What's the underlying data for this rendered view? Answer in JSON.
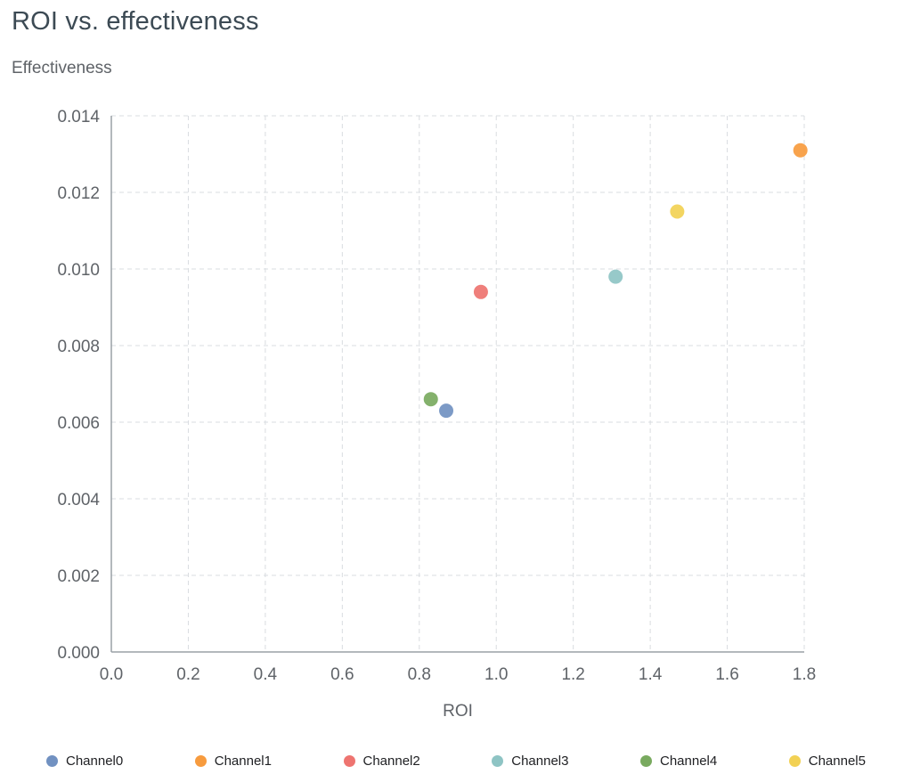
{
  "chart_data": {
    "type": "scatter",
    "title": "ROI vs. effectiveness",
    "xlabel": "ROI",
    "ylabel": "Effectiveness",
    "xlim": [
      0,
      1.8
    ],
    "ylim": [
      0,
      0.014
    ],
    "grid": true,
    "legend_position": "bottom",
    "xticks": [
      {
        "value": 0.0,
        "label": "0.0"
      },
      {
        "value": 0.2,
        "label": "0.2"
      },
      {
        "value": 0.4,
        "label": "0.4"
      },
      {
        "value": 0.6,
        "label": "0.6"
      },
      {
        "value": 0.8,
        "label": "0.8"
      },
      {
        "value": 1.0,
        "label": "1.0"
      },
      {
        "value": 1.2,
        "label": "1.2"
      },
      {
        "value": 1.4,
        "label": "1.4"
      },
      {
        "value": 1.6,
        "label": "1.6"
      },
      {
        "value": 1.8,
        "label": "1.8"
      }
    ],
    "yticks": [
      {
        "value": 0.0,
        "label": "0.000"
      },
      {
        "value": 0.002,
        "label": "0.002"
      },
      {
        "value": 0.004,
        "label": "0.004"
      },
      {
        "value": 0.006,
        "label": "0.006"
      },
      {
        "value": 0.008,
        "label": "0.008"
      },
      {
        "value": 0.01,
        "label": "0.010"
      },
      {
        "value": 0.012,
        "label": "0.012"
      },
      {
        "value": 0.014,
        "label": "0.014"
      }
    ],
    "series": [
      {
        "name": "Channel0",
        "color": "#7191c1",
        "points": [
          {
            "x": 0.87,
            "y": 0.0063
          }
        ]
      },
      {
        "name": "Channel1",
        "color": "#f79b3e",
        "points": [
          {
            "x": 1.79,
            "y": 0.0131
          }
        ]
      },
      {
        "name": "Channel2",
        "color": "#ee7470",
        "points": [
          {
            "x": 0.96,
            "y": 0.0094
          }
        ]
      },
      {
        "name": "Channel3",
        "color": "#8ec4c4",
        "points": [
          {
            "x": 1.31,
            "y": 0.0098
          }
        ]
      },
      {
        "name": "Channel4",
        "color": "#79aa5f",
        "points": [
          {
            "x": 0.83,
            "y": 0.0066
          }
        ]
      },
      {
        "name": "Channel5",
        "color": "#f2d154",
        "points": [
          {
            "x": 1.47,
            "y": 0.0115
          }
        ]
      }
    ],
    "theme": {
      "grid_color": "#d9dce0",
      "axis_color": "#9aa0a6",
      "tick_color": "#5f6368",
      "title_color": "#3c4a54",
      "legend_text_color": "#202124"
    }
  }
}
